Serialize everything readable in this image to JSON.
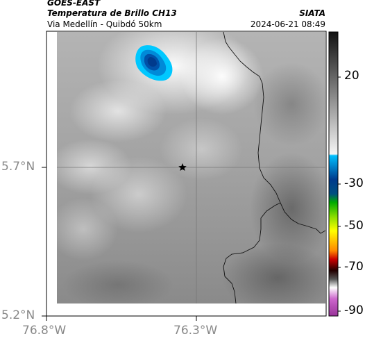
{
  "header": {
    "satellite": "GOES-EAST",
    "product": "Temperatura de Brillo CH13",
    "route": "Via Medellín - Quibdó 50km",
    "agency": "SIATA",
    "datetime": "2024-06-21 08:49"
  },
  "map": {
    "lat_ticks": [
      "5.7°N",
      "5.2°N"
    ],
    "lon_ticks": [
      "76.8°W",
      "76.3°W"
    ],
    "marker_icon": "star-marker-icon",
    "gridlines": true
  },
  "colorbar": {
    "ticks": [
      "20",
      "-30",
      "-50",
      "-70",
      "-90"
    ],
    "palette": [
      "#111111",
      "#ffffff",
      "#00b7ff",
      "#003a8c",
      "#00cc00",
      "#ffff00",
      "#ff3300",
      "#000000",
      "#ffffff",
      "#cc33cc"
    ]
  }
}
